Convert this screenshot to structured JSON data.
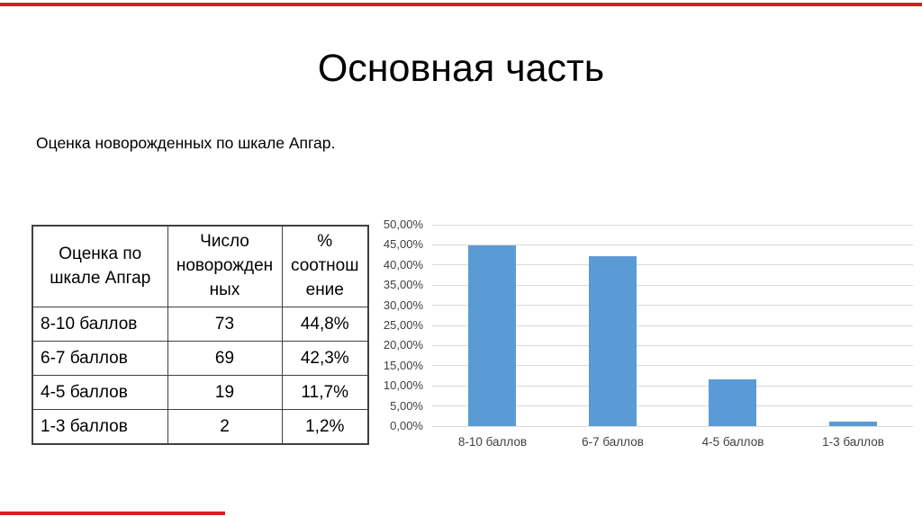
{
  "title": "Основная часть",
  "subtitle": "Оценка новорожденных по шкале Апгар.",
  "accent_color": "#d32020",
  "table": {
    "headers": [
      "Оценка по шкале Апгар",
      "Число новорожденных",
      "% соотношение"
    ],
    "rows": [
      [
        "8-10 баллов",
        "73",
        "44,8%"
      ],
      [
        "6-7 баллов",
        "69",
        "42,3%"
      ],
      [
        "4-5 баллов",
        "19",
        "11,7%"
      ],
      [
        "1-3 баллов",
        "2",
        "1,2%"
      ]
    ]
  },
  "chart_data": {
    "type": "bar",
    "title": "",
    "xlabel": "",
    "ylabel": "",
    "categories": [
      "8-10 баллов",
      "6-7 баллов",
      "4-5 баллов",
      "1-3 баллов"
    ],
    "values": [
      44.8,
      42.3,
      11.7,
      1.2
    ],
    "ylim": [
      0,
      50
    ],
    "ytick_step": 5,
    "yticks": [
      "0,00%",
      "5,00%",
      "10,00%",
      "15,00%",
      "20,00%",
      "25,00%",
      "30,00%",
      "35,00%",
      "40,00%",
      "45,00%",
      "50,00%"
    ],
    "grid": true,
    "legend": false,
    "bar_color": "#5b9bd5",
    "gridline_color": "#d9d9d9",
    "axis_text_color": "#404040"
  }
}
